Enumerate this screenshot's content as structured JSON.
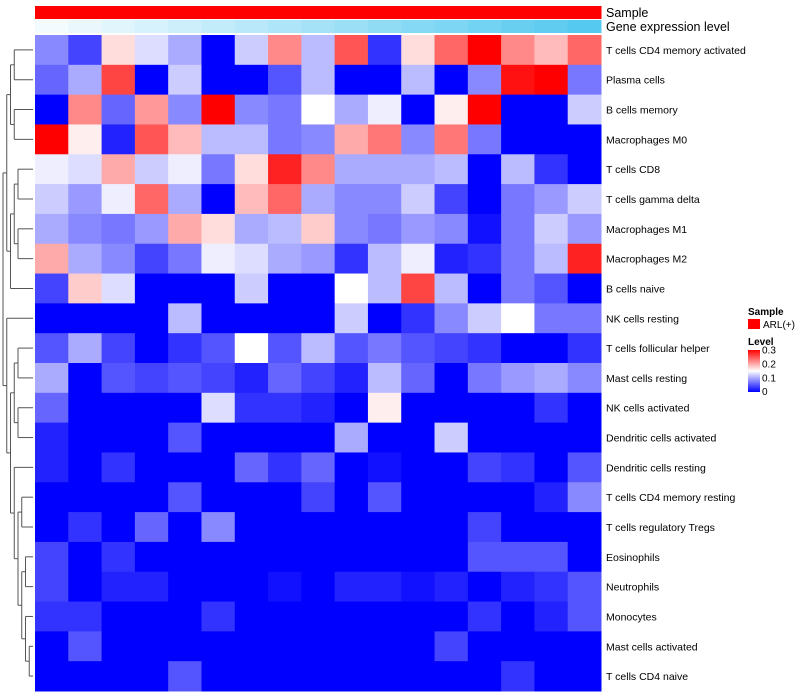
{
  "chart_data": {
    "type": "heatmap",
    "title": "",
    "rows": [
      "T cells CD4 memory activated",
      "Plasma cells",
      "B cells memory",
      "Macrophages M0",
      "T cells CD8",
      "T cells gamma delta",
      "Macrophages M1",
      "Macrophages M2",
      "B cells naive",
      "NK cells resting",
      "T cells follicular helper",
      "Mast cells resting",
      "NK cells activated",
      "Dendritic cells activated",
      "Dendritic cells resting",
      "T cells CD4 memory resting",
      "T cells regulatory  Tregs",
      "Eosinophils",
      "Neutrophils",
      "Monocytes",
      "Mast cells activated",
      "T cells CD4 naive"
    ],
    "values": [
      [
        0.08,
        0.04,
        0.17,
        0.13,
        0.1,
        0.0,
        0.12,
        0.22,
        0.11,
        0.25,
        0.03,
        0.17,
        0.24,
        0.3,
        0.22,
        0.19,
        0.24
      ],
      [
        0.06,
        0.1,
        0.26,
        0.0,
        0.12,
        0.0,
        0.0,
        0.05,
        0.11,
        0.0,
        0.0,
        0.11,
        0.0,
        0.08,
        0.29,
        0.3,
        0.07
      ],
      [
        0.0,
        0.22,
        0.06,
        0.21,
        0.08,
        0.3,
        0.08,
        0.07,
        0.15,
        0.1,
        0.14,
        0.0,
        0.16,
        0.3,
        0.0,
        0.0,
        0.12
      ],
      [
        0.3,
        0.16,
        0.02,
        0.25,
        0.19,
        0.11,
        0.11,
        0.07,
        0.08,
        0.2,
        0.23,
        0.08,
        0.23,
        0.07,
        0.0,
        0.0,
        0.0
      ],
      [
        0.14,
        0.13,
        0.2,
        0.12,
        0.14,
        0.07,
        0.17,
        0.28,
        0.22,
        0.1,
        0.1,
        0.1,
        0.11,
        0.0,
        0.11,
        0.03,
        0.0
      ],
      [
        0.12,
        0.09,
        0.14,
        0.24,
        0.1,
        0.0,
        0.19,
        0.24,
        0.1,
        0.08,
        0.08,
        0.12,
        0.04,
        0.0,
        0.07,
        0.09,
        0.12
      ],
      [
        0.1,
        0.08,
        0.07,
        0.09,
        0.2,
        0.17,
        0.1,
        0.11,
        0.18,
        0.08,
        0.07,
        0.09,
        0.08,
        0.01,
        0.07,
        0.12,
        0.09
      ],
      [
        0.2,
        0.1,
        0.08,
        0.04,
        0.07,
        0.14,
        0.13,
        0.1,
        0.09,
        0.03,
        0.11,
        0.14,
        0.02,
        0.03,
        0.07,
        0.11,
        0.28
      ],
      [
        0.04,
        0.18,
        0.13,
        0.0,
        0.0,
        0.0,
        0.12,
        0.0,
        0.0,
        0.15,
        0.11,
        0.26,
        0.11,
        0.0,
        0.07,
        0.05,
        0.0
      ],
      [
        0.0,
        0.0,
        0.0,
        0.0,
        0.11,
        0.0,
        0.0,
        0.0,
        0.0,
        0.12,
        0.0,
        0.03,
        0.08,
        0.12,
        0.15,
        0.07,
        0.07
      ],
      [
        0.05,
        0.1,
        0.04,
        0.0,
        0.03,
        0.05,
        0.15,
        0.05,
        0.11,
        0.05,
        0.07,
        0.05,
        0.04,
        0.03,
        0.0,
        0.0,
        0.03
      ],
      [
        0.1,
        0.0,
        0.05,
        0.04,
        0.05,
        0.04,
        0.02,
        0.06,
        0.04,
        0.02,
        0.11,
        0.06,
        0.0,
        0.07,
        0.09,
        0.1,
        0.08
      ],
      [
        0.06,
        0.0,
        0.0,
        0.0,
        0.0,
        0.13,
        0.03,
        0.03,
        0.02,
        0.0,
        0.16,
        0.0,
        0.0,
        0.0,
        0.0,
        0.03,
        0.0
      ],
      [
        0.02,
        0.0,
        0.0,
        0.0,
        0.05,
        0.0,
        0.0,
        0.0,
        0.0,
        0.1,
        0.0,
        0.0,
        0.12,
        0.0,
        0.0,
        0.0,
        0.0
      ],
      [
        0.02,
        0.0,
        0.03,
        0.0,
        0.0,
        0.0,
        0.06,
        0.03,
        0.06,
        0.0,
        0.01,
        0.0,
        0.0,
        0.04,
        0.03,
        0.0,
        0.05
      ],
      [
        0.0,
        0.0,
        0.0,
        0.0,
        0.05,
        0.0,
        0.0,
        0.0,
        0.04,
        0.0,
        0.05,
        0.0,
        0.0,
        0.0,
        0.0,
        0.02,
        0.08
      ],
      [
        0.0,
        0.03,
        0.0,
        0.06,
        0.0,
        0.08,
        0.0,
        0.0,
        0.0,
        0.0,
        0.0,
        0.0,
        0.0,
        0.04,
        0.0,
        0.0,
        0.0
      ],
      [
        0.04,
        0.0,
        0.03,
        0.0,
        0.0,
        0.0,
        0.0,
        0.0,
        0.0,
        0.0,
        0.0,
        0.0,
        0.0,
        0.05,
        0.05,
        0.05,
        0.0
      ],
      [
        0.04,
        0.0,
        0.02,
        0.02,
        0.0,
        0.0,
        0.0,
        0.01,
        0.0,
        0.02,
        0.02,
        0.01,
        0.02,
        0.0,
        0.02,
        0.03,
        0.05
      ],
      [
        0.03,
        0.03,
        0.0,
        0.0,
        0.0,
        0.03,
        0.0,
        0.0,
        0.0,
        0.0,
        0.0,
        0.0,
        0.0,
        0.03,
        0.0,
        0.02,
        0.05
      ],
      [
        0.0,
        0.05,
        0.0,
        0.0,
        0.0,
        0.0,
        0.0,
        0.0,
        0.0,
        0.0,
        0.0,
        0.0,
        0.04,
        0.0,
        0.0,
        0.0,
        0.0
      ],
      [
        0.0,
        0.0,
        0.0,
        0.0,
        0.05,
        0.0,
        0.0,
        0.0,
        0.0,
        0.0,
        0.0,
        0.0,
        0.0,
        0.0,
        0.03,
        0.0,
        0.0
      ]
    ],
    "column_annotations": [
      {
        "name": "Sample",
        "values": [
          "ARL(+)",
          "ARL(+)",
          "ARL(+)",
          "ARL(+)",
          "ARL(+)",
          "ARL(+)",
          "ARL(+)",
          "ARL(+)",
          "ARL(+)",
          "ARL(+)",
          "ARL(+)",
          "ARL(+)",
          "ARL(+)",
          "ARL(+)",
          "ARL(+)",
          "ARL(+)",
          "ARL(+)"
        ]
      },
      {
        "name": "Gene expression level",
        "values": [
          0.0,
          0.06,
          0.12,
          0.19,
          0.25,
          0.31,
          0.38,
          0.44,
          0.5,
          0.56,
          0.62,
          0.69,
          0.75,
          0.81,
          0.88,
          0.94,
          1.0
        ]
      }
    ],
    "colors": {
      "low": "#0000ff",
      "mid": "#ffffff",
      "high": "#ff0000",
      "sample_arl": "#ff0000",
      "gene_low": "#f4fbff",
      "gene_high": "#55c9ef",
      "dendrogram": "#555555"
    },
    "scale": {
      "min": 0,
      "max": 0.3
    },
    "legend": {
      "placement": "right",
      "sample_title": "Sample",
      "sample_item": "ARL(+)",
      "level_title": "Level",
      "ticks": [
        {
          "value": 0.3,
          "label": "0.3"
        },
        {
          "value": 0.2,
          "label": "0.2"
        },
        {
          "value": 0.1,
          "label": "0.1"
        },
        {
          "value": 0,
          "label": "0"
        }
      ]
    },
    "dendrogram": {
      "children": [
        {
          "children": [
            {
              "children": [
                {
                  "children": [
                    {
                      "leaf": 0
                    },
                    {
                      "leaf": 1
                    }
                  ]
                },
                {
                  "children": [
                    {
                      "leaf": 2
                    },
                    {
                      "leaf": 3
                    }
                  ]
                }
              ]
            },
            {
              "children": [
                {
                  "children": [
                    {
                      "children": [
                        {
                          "leaf": 4
                        },
                        {
                          "leaf": 5
                        }
                      ]
                    },
                    {
                      "children": [
                        {
                          "leaf": 6
                        },
                        {
                          "leaf": 7
                        }
                      ]
                    }
                  ]
                },
                {
                  "leaf": 8
                }
              ]
            }
          ]
        },
        {
          "children": [
            {
              "leaf": 9
            },
            {
              "children": [
                {
                  "children": [
                    {
                      "children": [
                        {
                          "leaf": 10
                        },
                        {
                          "leaf": 11
                        }
                      ]
                    },
                    {
                      "children": [
                        {
                          "leaf": 12
                        },
                        {
                          "leaf": 13
                        }
                      ]
                    }
                  ]
                },
                {
                  "children": [
                    {
                      "leaf": 14
                    },
                    {
                      "children": [
                        {
                          "children": [
                            {
                              "leaf": 15
                            },
                            {
                              "leaf": 16
                            }
                          ]
                        },
                        {
                          "children": [
                            {
                              "children": [
                                {
                                  "leaf": 17
                                },
                                {
                                  "leaf": 18
                                }
                              ]
                            },
                            {
                              "children": [
                                {
                                  "leaf": 19
                                },
                                {
                                  "children": [
                                    {
                                      "leaf": 20
                                    },
                                    {
                                      "leaf": 21
                                    }
                                  ]
                                }
                              ]
                            }
                          ]
                        }
                      ]
                    }
                  ]
                }
              ]
            }
          ]
        }
      ]
    }
  }
}
